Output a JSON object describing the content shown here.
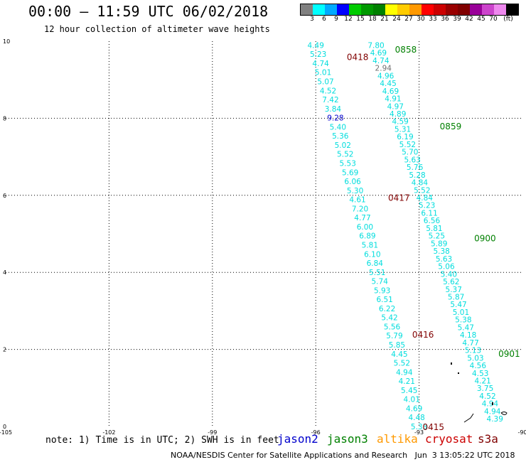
{
  "header": {
    "title": "00:00 – 11:59 UTC 06/02/2018",
    "subtitle": "12 hour collection of altimeter wave heights"
  },
  "legend": {
    "unit_label": "(ft)",
    "colors": [
      "#808080",
      "#00ffff",
      "#00aaff",
      "#0000ff",
      "#00cc00",
      "#009900",
      "#008000",
      "#ffff00",
      "#ffcc00",
      "#ff9900",
      "#ff0000",
      "#cc0000",
      "#990000",
      "#800000",
      "#990099",
      "#cc44cc",
      "#ee88ee",
      "#000000"
    ],
    "labels": [
      "3",
      "6",
      "9",
      "12",
      "15",
      "18",
      "21",
      "24",
      "27",
      "30",
      "33",
      "36",
      "39",
      "42",
      "45",
      "70"
    ]
  },
  "chart_data": {
    "type": "scatter",
    "xlim": [
      -105,
      -90
    ],
    "ylim": [
      0,
      10
    ],
    "x_ticks": [
      "-105",
      "-102",
      "-99",
      "-96",
      "-93",
      "-90"
    ],
    "y_ticks": [
      "0",
      "2",
      "4",
      "6",
      "8",
      "10"
    ],
    "grid": true,
    "time_labels": [
      {
        "text": "0858",
        "x": -93.7,
        "y": 9.8,
        "color": "#008000"
      },
      {
        "text": "0859",
        "x": -92.4,
        "y": 7.8,
        "color": "#008000"
      },
      {
        "text": "0900",
        "x": -91.4,
        "y": 4.9,
        "color": "#008000"
      },
      {
        "text": "0901",
        "x": -90.7,
        "y": 1.9,
        "color": "#008000"
      },
      {
        "text": "0418",
        "x": -95.1,
        "y": 9.6,
        "color": "#800000"
      },
      {
        "text": "0417",
        "x": -93.9,
        "y": 5.95,
        "color": "#800000"
      },
      {
        "text": "0416",
        "x": -93.2,
        "y": 2.4,
        "color": "#800000"
      },
      {
        "text": "0415",
        "x": -92.9,
        "y": 0.0,
        "color": "#800000"
      }
    ],
    "track_a": {
      "values": [
        "4.49",
        "5.23",
        "4.74",
        "5.01",
        "5.07",
        "4.52",
        "7.42",
        "3.84",
        "9.28",
        "5.40",
        "5.36",
        "5.02",
        "5.52",
        "5.53",
        "5.69",
        "6.06",
        "5.30",
        "4.61",
        "7.20",
        "4.77",
        "6.00",
        "6.89",
        "5.81",
        "6.10",
        "6.84",
        "5.51",
        "5.74",
        "5.93",
        "6.51",
        "6.22",
        "5.42",
        "5.56",
        "5.79",
        "5.85",
        "4.45",
        "5.52",
        "4.94",
        "4.21",
        "5.45",
        "4.01",
        "4.69",
        "4.48",
        "5.33"
      ],
      "start": [
        -96.0,
        9.9
      ],
      "end": [
        -93.0,
        0.0
      ]
    },
    "track_b": {
      "values": [
        "7.80",
        "4.69",
        "4.74",
        "2.94",
        "4.96",
        "4.45",
        "4.69",
        "4.91",
        "4.97",
        "4.89",
        "4.59",
        "5.31",
        "6.19",
        "5.52",
        "5.70",
        "5.63",
        "5.76",
        "5.28",
        "4.84",
        "5.52",
        "4.84",
        "5.23",
        "6.11",
        "6.56",
        "5.81",
        "5.25",
        "5.89",
        "5.38",
        "5.63",
        "5.06",
        "5.40",
        "5.62",
        "5.37",
        "5.87",
        "5.47",
        "5.01",
        "5.38",
        "5.47",
        "4.18",
        "4.77",
        "5.13",
        "5.03",
        "4.56",
        "4.53",
        "4.21",
        "3.75",
        "4.52",
        "4.94",
        "4.94",
        "4.39"
      ],
      "start": [
        -94.25,
        9.9
      ],
      "end": [
        -90.8,
        0.2
      ]
    }
  },
  "note": "note: 1) Time is in UTC; 2) SWH is in feet",
  "satellites": [
    {
      "name": "jason2",
      "color": "#0000cc"
    },
    {
      "name": "jason3",
      "color": "#008000"
    },
    {
      "name": "altika",
      "color": "#ff9900"
    },
    {
      "name": "cryosat",
      "color": "#cc0000"
    },
    {
      "name": "s3a",
      "color": "#800000"
    }
  ],
  "footer": "NOAA/NESDIS Center for Satellite Applications and Research   Jun  3 13:05:22 UTC 2018"
}
